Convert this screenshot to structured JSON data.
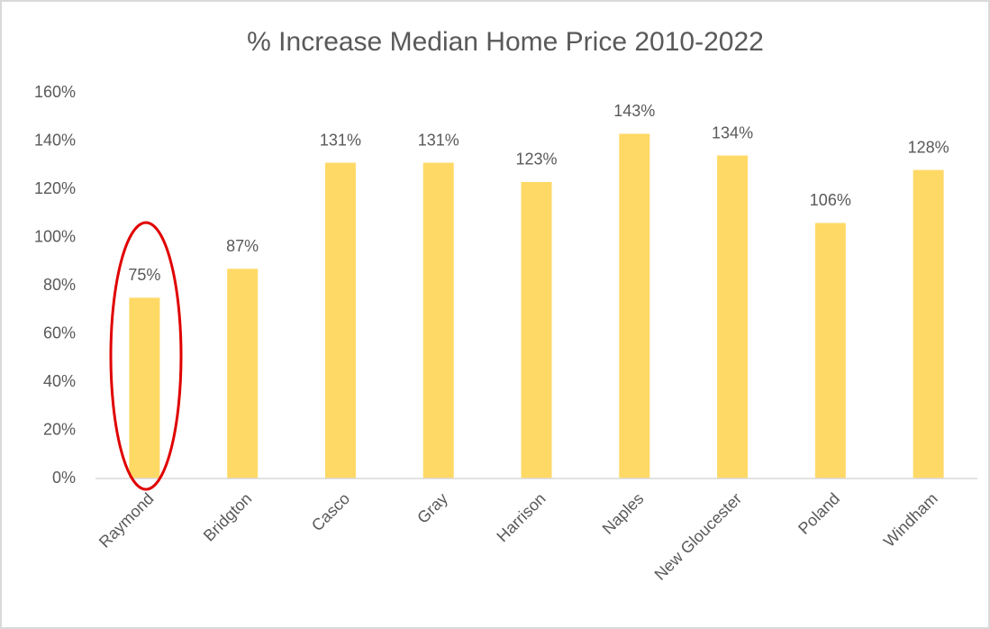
{
  "chart_data": {
    "type": "bar",
    "title": "% Increase Median Home Price 2010-2022",
    "categories": [
      "Raymond",
      "Bridgton",
      "Casco",
      "Gray",
      "Harrison",
      "Naples",
      "New Gloucester",
      "Poland",
      "Windham"
    ],
    "values": [
      75,
      87,
      131,
      131,
      123,
      143,
      134,
      106,
      128
    ],
    "value_labels": [
      "75%",
      "87%",
      "131%",
      "131%",
      "123%",
      "143%",
      "134%",
      "106%",
      "128%"
    ],
    "color": "#ffd966",
    "ylim": [
      0,
      160
    ],
    "yticks": [
      {
        "value": 0,
        "label": "0%"
      },
      {
        "value": 20,
        "label": "20%"
      },
      {
        "value": 40,
        "label": "40%"
      },
      {
        "value": 60,
        "label": "60%"
      },
      {
        "value": 80,
        "label": "80%"
      },
      {
        "value": 100,
        "label": "100%"
      },
      {
        "value": 120,
        "label": "120%"
      },
      {
        "value": 140,
        "label": "140%"
      },
      {
        "value": 160,
        "label": "160%"
      }
    ],
    "grid": false
  }
}
